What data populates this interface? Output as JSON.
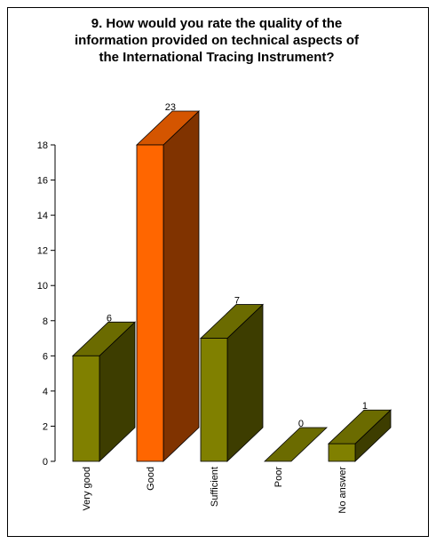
{
  "chart_data": {
    "type": "bar",
    "title_lines": [
      "9. How would you rate the quality of the",
      "information provided on technical aspects of",
      "the International Tracing Instrument?"
    ],
    "categories": [
      "Very good",
      "Good",
      "Sufficient",
      "Poor",
      "No answer"
    ],
    "values": [
      6,
      23,
      7,
      0,
      1
    ],
    "value_labels": [
      "6",
      "23",
      "7",
      "0",
      "1"
    ],
    "highlight_index": 1,
    "ylim": [
      0,
      18
    ],
    "yticks": [
      "0",
      "2",
      "4",
      "6",
      "8",
      "10",
      "12",
      "14",
      "16",
      "18"
    ],
    "three_d": true,
    "grid": false,
    "legend": "none",
    "colors": {
      "bar_front": "#808000",
      "bar_side": "#3d3d00",
      "bar_top": "#6b6b00",
      "highlight_front": "#ff6600",
      "highlight_side": "#803300",
      "highlight_top": "#d45500",
      "axis": "#000000"
    }
  }
}
